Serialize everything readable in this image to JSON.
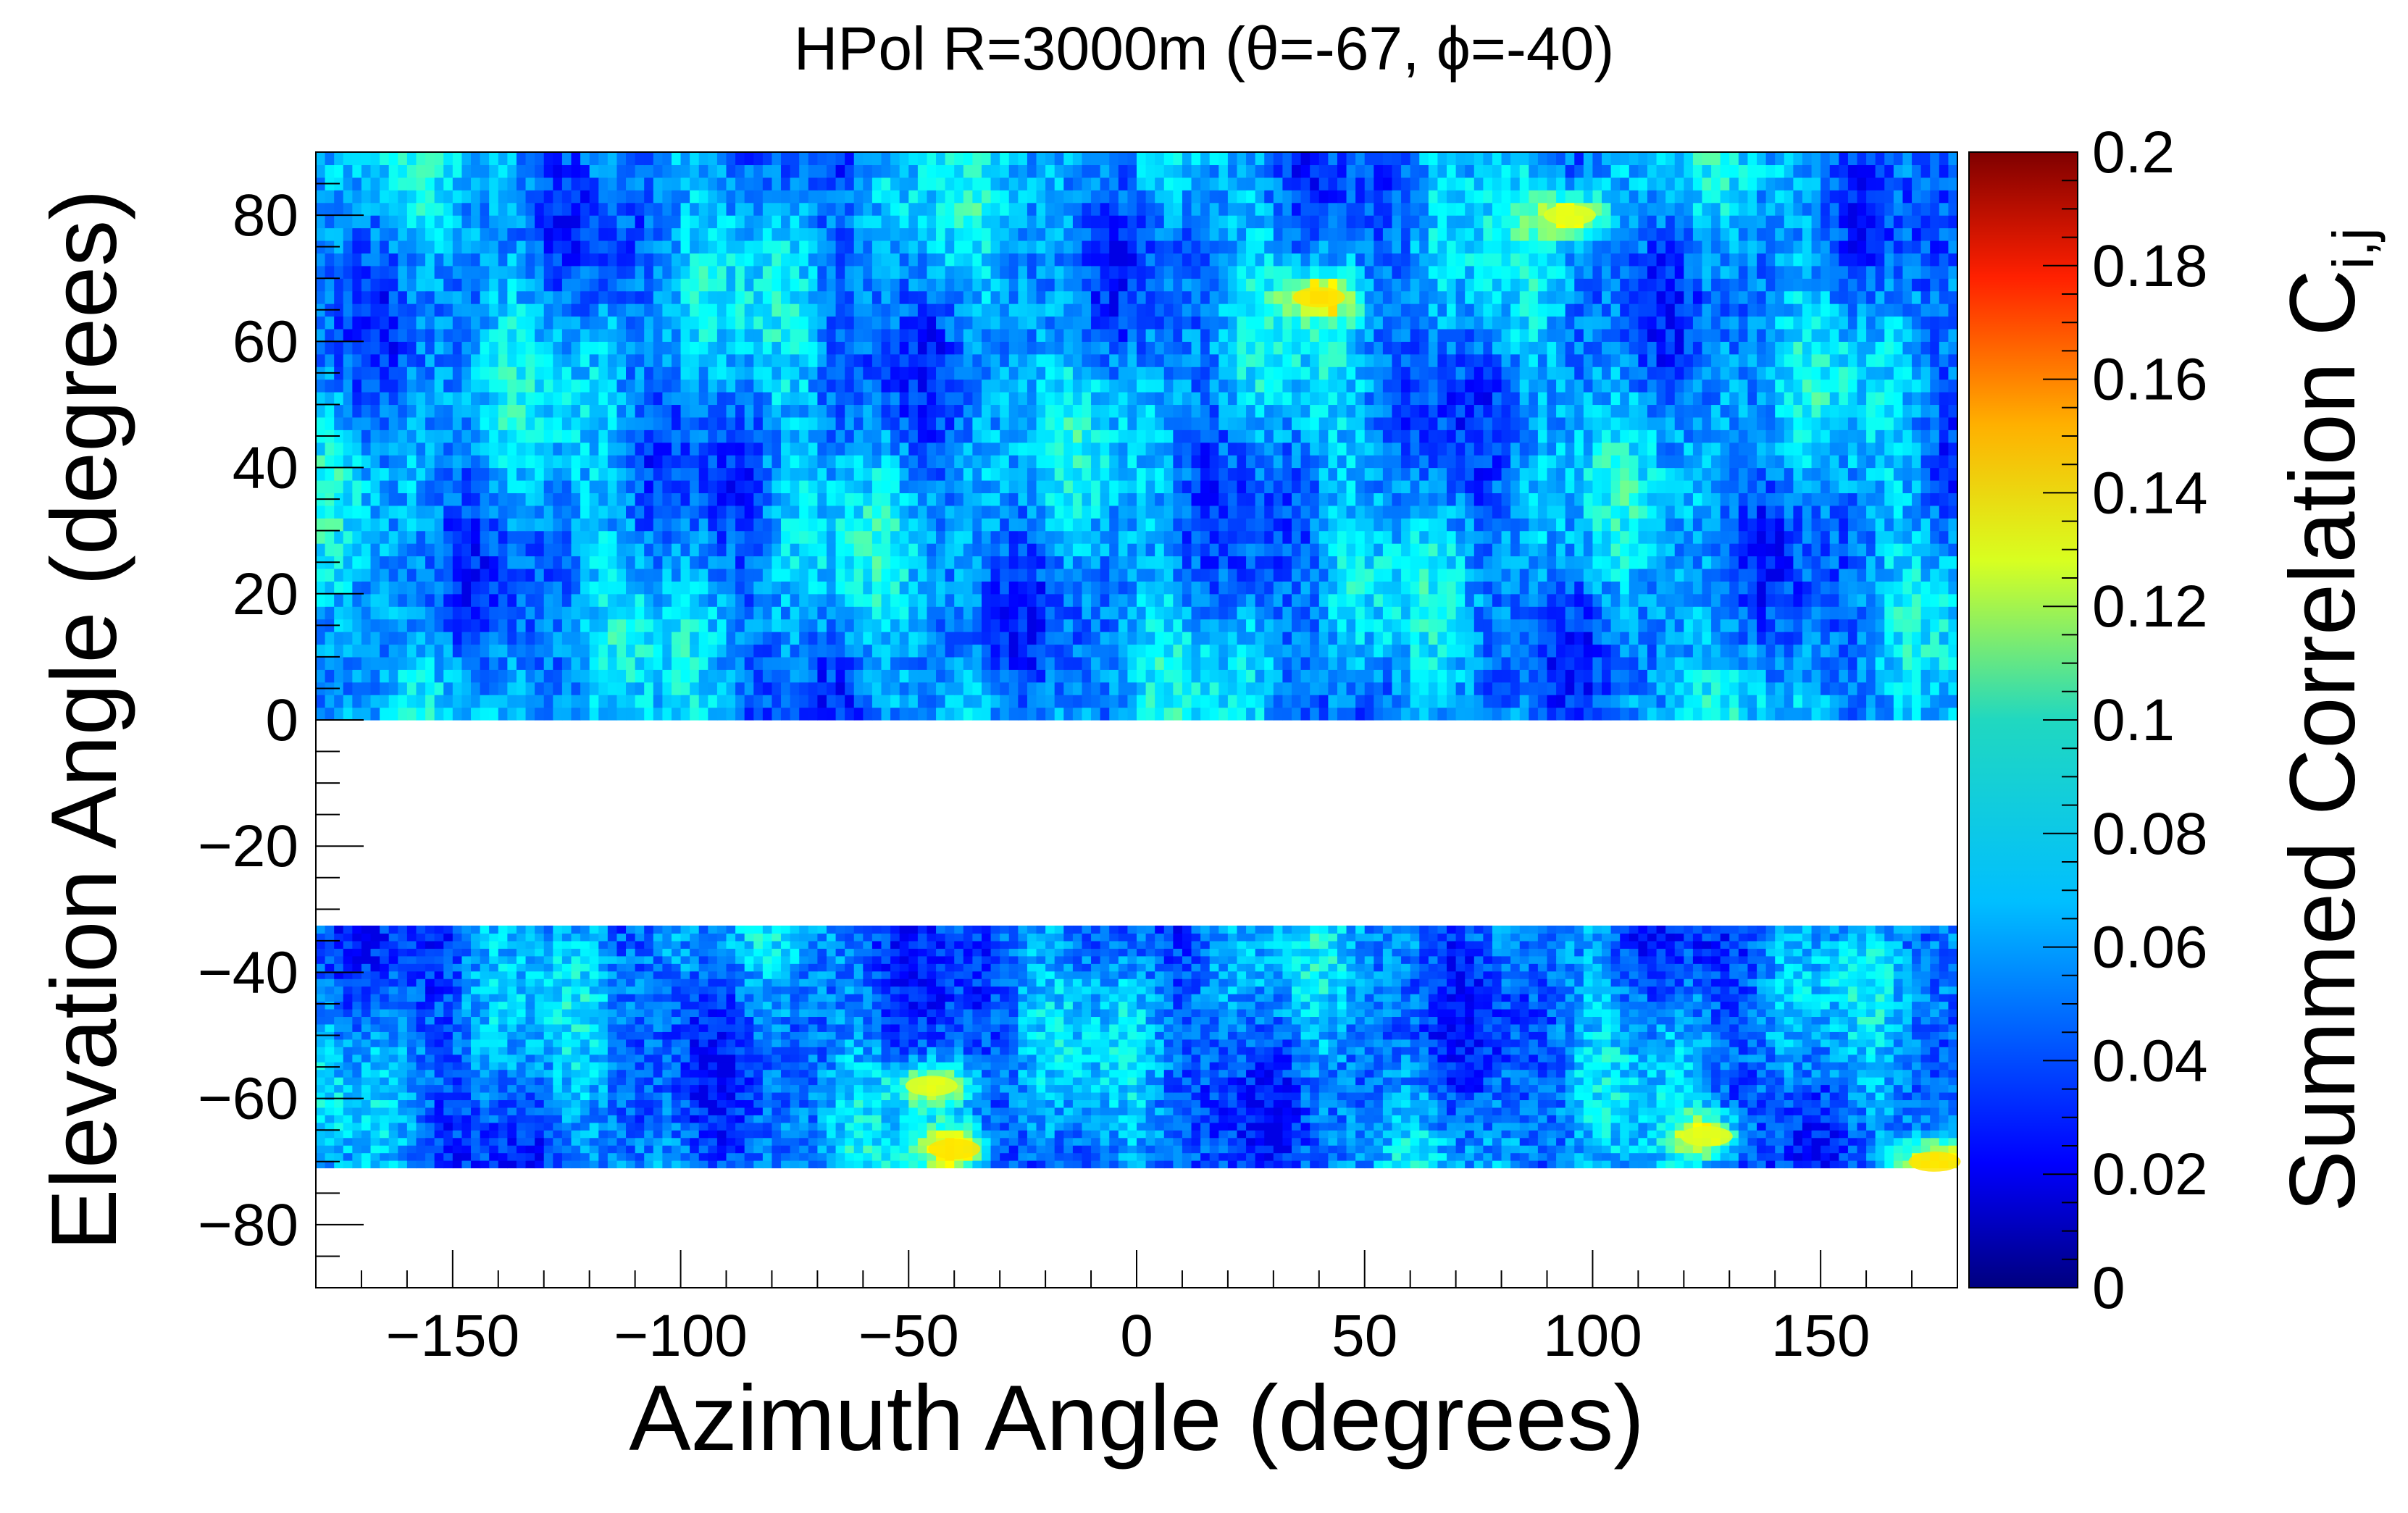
{
  "chart_data": {
    "type": "heatmap",
    "title": "HPol R=3000m (θ=-67, ϕ=-40)",
    "xlabel": "Azimuth Angle (degrees)",
    "ylabel": "Elevation Angle (degrees)",
    "xlim": [
      -180,
      180
    ],
    "ylim": [
      -90,
      90
    ],
    "x_ticks": [
      -150,
      -100,
      -50,
      0,
      50,
      100,
      150
    ],
    "x_tick_labels": [
      "−150",
      "−100",
      "−50",
      "0",
      "50",
      "100",
      "150"
    ],
    "y_ticks": [
      -80,
      -60,
      -40,
      -20,
      0,
      20,
      40,
      60,
      80
    ],
    "y_tick_labels": [
      "−80",
      "−60",
      "−40",
      "−20",
      "0",
      "20",
      "40",
      "60",
      "80"
    ],
    "colorbar": {
      "label_main": "Summed Correlation C",
      "label_sub": "i,j",
      "zlim": [
        0,
        0.2
      ],
      "ticks": [
        0,
        0.02,
        0.04,
        0.06,
        0.08,
        0.1,
        0.12,
        0.14,
        0.16,
        0.18,
        0.2
      ],
      "tick_labels": [
        "0",
        "0.02",
        "0.04",
        "0.06",
        "0.08",
        "0.1",
        "0.12",
        "0.14",
        "0.16",
        "0.18",
        "0.2"
      ],
      "colormap": "jet"
    },
    "filled_regions": [
      {
        "name": "upper-band",
        "elevation_range": [
          0,
          90
        ],
        "azimuth_range": [
          -180,
          180
        ],
        "typical_value": 0.055,
        "value_range": [
          0.02,
          0.14
        ]
      },
      {
        "name": "lower-band",
        "elevation_range": [
          -71,
          -33
        ],
        "azimuth_range": [
          -180,
          180
        ],
        "typical_value": 0.05,
        "value_range": [
          0.02,
          0.13
        ]
      }
    ],
    "empty_regions": [
      {
        "elevation_range": [
          -33,
          0
        ],
        "note": "no data (white)"
      },
      {
        "elevation_range": [
          -90,
          -71
        ],
        "note": "no data (white)"
      }
    ],
    "bright_features": [
      {
        "azimuth": 40,
        "elevation": 67,
        "value": 0.13
      },
      {
        "azimuth": 95,
        "elevation": 80,
        "value": 0.12
      },
      {
        "azimuth": -40,
        "elevation": -68,
        "value": 0.13
      },
      {
        "azimuth": -45,
        "elevation": -58,
        "value": 0.12
      },
      {
        "azimuth": 125,
        "elevation": -66,
        "value": 0.12
      },
      {
        "azimuth": 175,
        "elevation": -70,
        "value": 0.13
      }
    ]
  }
}
